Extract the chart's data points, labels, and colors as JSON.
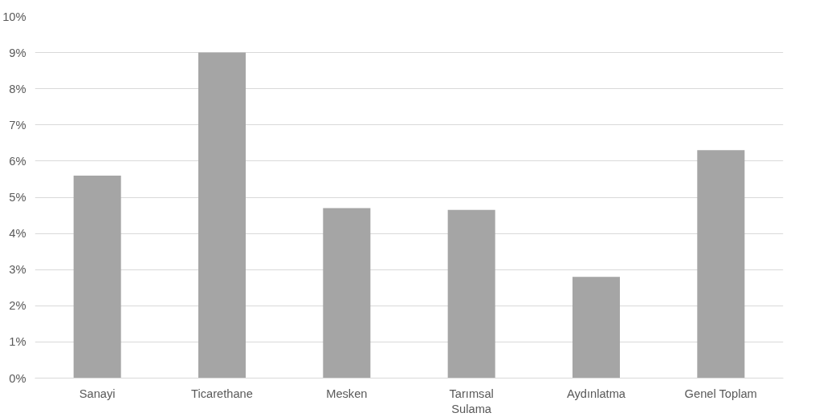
{
  "chart_data": {
    "type": "bar",
    "categories": [
      "Sanayi",
      "Ticarethane",
      "Mesken",
      "Tarımsal Sulama",
      "Aydınlatma",
      "Genel Toplam"
    ],
    "values": [
      5.6,
      9.0,
      4.7,
      4.65,
      2.8,
      6.3
    ],
    "color": "#a5a5a5",
    "ylim": [
      0,
      10
    ],
    "yticks": [
      {
        "value": 0,
        "label": "0%"
      },
      {
        "value": 1,
        "label": "1%"
      },
      {
        "value": 2,
        "label": "2%"
      },
      {
        "value": 3,
        "label": "3%"
      },
      {
        "value": 4,
        "label": "4%"
      },
      {
        "value": 5,
        "label": "5%"
      },
      {
        "value": 6,
        "label": "6%"
      },
      {
        "value": 7,
        "label": "7%"
      },
      {
        "value": 8,
        "label": "8%"
      },
      {
        "value": 9,
        "label": "9%"
      },
      {
        "value": 10,
        "label": "10%"
      }
    ],
    "grid": "y"
  }
}
